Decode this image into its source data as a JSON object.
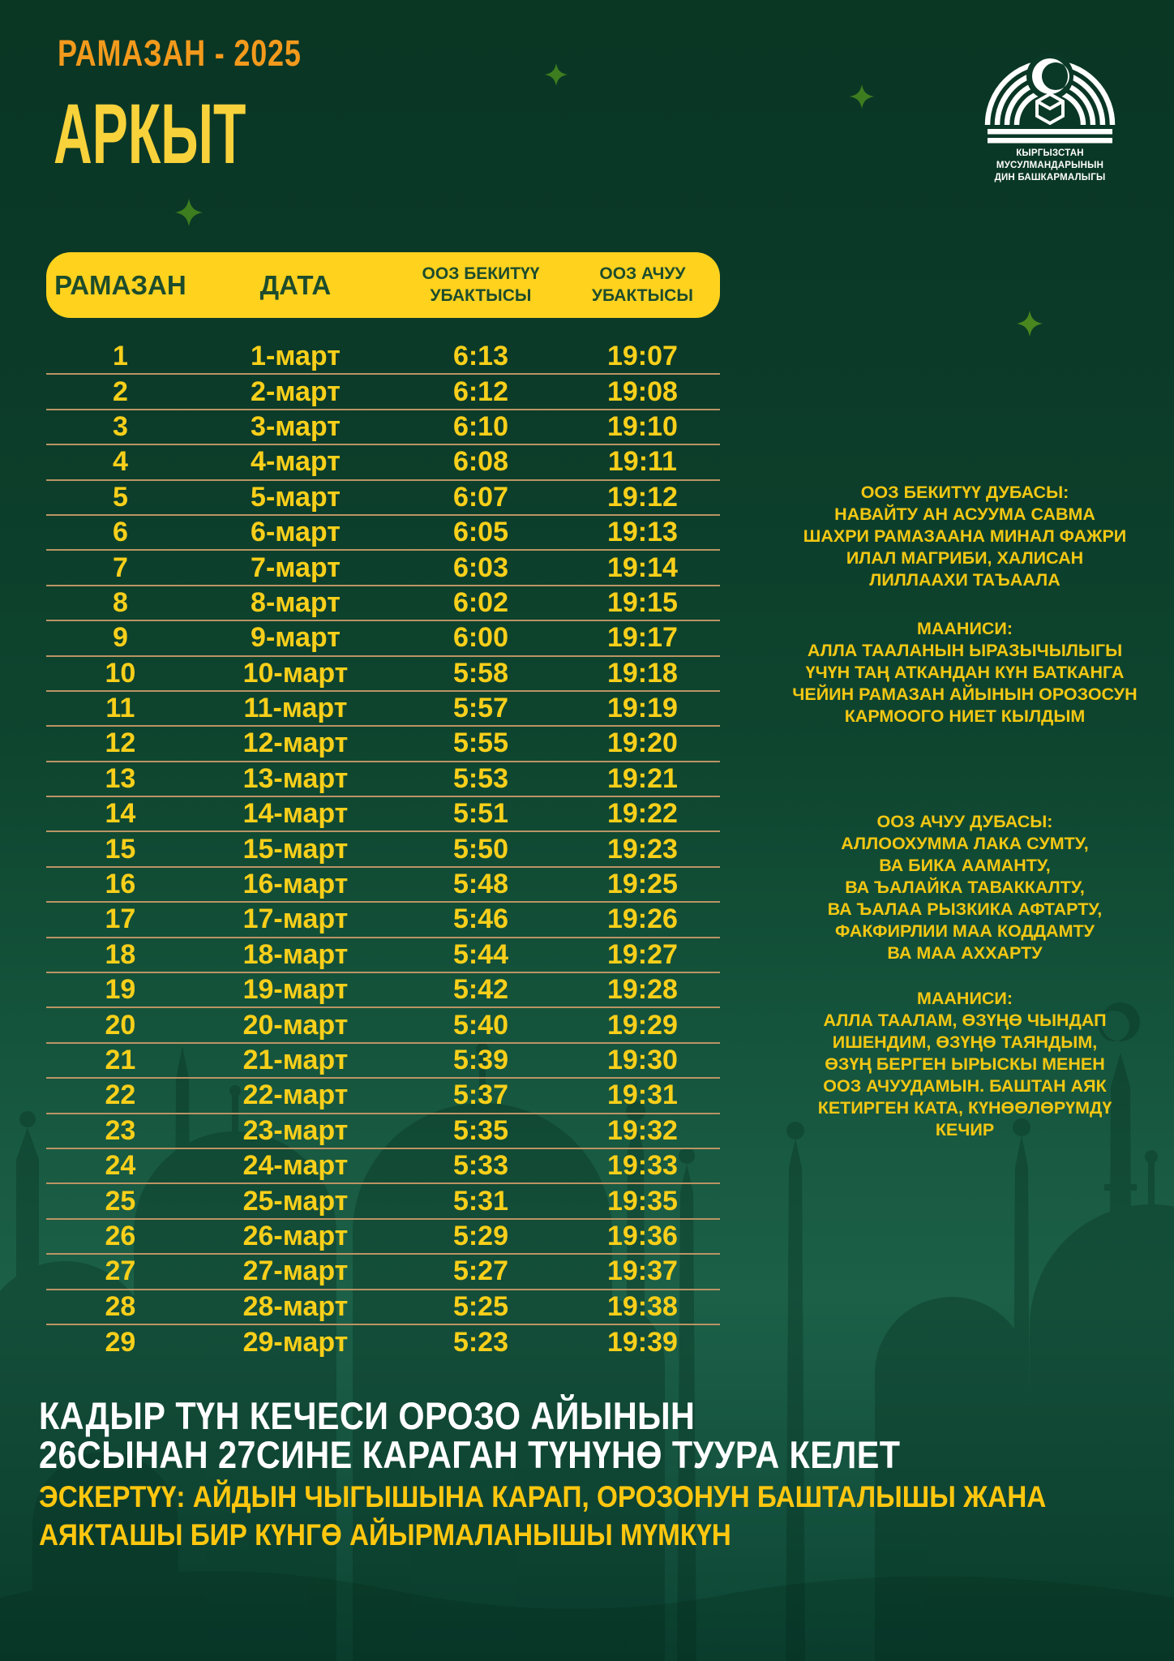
{
  "poster": {
    "year_title": "РАМАЗАН - 2025",
    "location": "АРКЫТ",
    "logo": {
      "line1": "КЫРГЫЗСТАН МУСУЛМАНДАРЫНЫН",
      "line2": "ДИН БАШКАРМАЛЫГЫ"
    }
  },
  "table": {
    "headers": [
      "РАМАЗАН",
      "ДАТА",
      "ООЗ БЕКИТҮҮ\nУБАКТЫСЫ",
      "ООЗ АЧУУ\nУБАКТЫСЫ"
    ],
    "rows": [
      [
        "1",
        "1-март",
        "6:13",
        "19:07"
      ],
      [
        "2",
        "2-март",
        "6:12",
        "19:08"
      ],
      [
        "3",
        "3-март",
        "6:10",
        "19:10"
      ],
      [
        "4",
        "4-март",
        "6:08",
        "19:11"
      ],
      [
        "5",
        "5-март",
        "6:07",
        "19:12"
      ],
      [
        "6",
        "6-март",
        "6:05",
        "19:13"
      ],
      [
        "7",
        "7-март",
        "6:03",
        "19:14"
      ],
      [
        "8",
        "8-март",
        "6:02",
        "19:15"
      ],
      [
        "9",
        "9-март",
        "6:00",
        "19:17"
      ],
      [
        "10",
        "10-март",
        "5:58",
        "19:18"
      ],
      [
        "11",
        "11-март",
        "5:57",
        "19:19"
      ],
      [
        "12",
        "12-март",
        "5:55",
        "19:20"
      ],
      [
        "13",
        "13-март",
        "5:53",
        "19:21"
      ],
      [
        "14",
        "14-март",
        "5:51",
        "19:22"
      ],
      [
        "15",
        "15-март",
        "5:50",
        "19:23"
      ],
      [
        "16",
        "16-март",
        "5:48",
        "19:25"
      ],
      [
        "17",
        "17-март",
        "5:46",
        "19:26"
      ],
      [
        "18",
        "18-март",
        "5:44",
        "19:27"
      ],
      [
        "19",
        "19-март",
        "5:42",
        "19:28"
      ],
      [
        "20",
        "20-март",
        "5:40",
        "19:29"
      ],
      [
        "21",
        "21-март",
        "5:39",
        "19:30"
      ],
      [
        "22",
        "22-март",
        "5:37",
        "19:31"
      ],
      [
        "23",
        "23-март",
        "5:35",
        "19:32"
      ],
      [
        "24",
        "24-март",
        "5:33",
        "19:33"
      ],
      [
        "25",
        "25-март",
        "5:31",
        "19:35"
      ],
      [
        "26",
        "26-март",
        "5:29",
        "19:36"
      ],
      [
        "27",
        "27-март",
        "5:27",
        "19:37"
      ],
      [
        "28",
        "28-март",
        "5:25",
        "19:38"
      ],
      [
        "29",
        "29-март",
        "5:23",
        "19:39"
      ]
    ]
  },
  "dua1": {
    "title": "ООЗ БЕКИТҮҮ ДУБАСЫ:",
    "lines": [
      "НАВАЙТУ АН АСУУМА САВМА",
      "ШАХРИ РАМАЗААНА МИНАЛ ФАЖРИ",
      "ИЛАЛ МАГРИБИ, ХАЛИСАН",
      "ЛИЛЛААХИ ТАЪААЛА"
    ],
    "meaning_title": "МААНИСИ:",
    "meaning_lines": [
      "АЛЛА ТААЛАНЫН ЫРАЗЫЧЫЛЫГЫ",
      "ҮЧҮН ТАҢ АТКАНДАН КҮН БАТКАНГА",
      "ЧЕЙИН РАМАЗАН АЙЫНЫН ОРОЗОСУН",
      "КАРМООГО НИЕТ КЫЛДЫМ"
    ]
  },
  "dua2": {
    "title": "ООЗ АЧУУ ДУБАСЫ:",
    "lines": [
      "АЛЛООХУММА ЛАКА СУМТУ,",
      "ВА БИКА ААМАНТУ,",
      "ВА ЪАЛАЙКА ТАВАККАЛТУ,",
      "ВА ЪАЛАА РЫЗКИКА АФТАРТУ,",
      "ФАКФИРЛИИ МАА КОДДАМТУ",
      "ВА МАА АХХАРТУ"
    ],
    "meaning_title": "МААНИСИ:",
    "meaning_lines": [
      "АЛЛА ТААЛАМ, ӨЗҮҢӨ ЧЫНДАП",
      "ИШЕНДИМ, ӨЗҮҢӨ ТАЯНДЫМ,",
      "ӨЗҮҢ БЕРГЕН ЫРЫСКЫ МЕНЕН",
      "ООЗ АЧУУДАМЫН. БАШТАН АЯК",
      "КЕТИРГЕН КАТА, КҮНӨӨЛӨРҮМДҮ",
      "КЕЧИР"
    ]
  },
  "footer": {
    "white_lines": [
      "КАДЫР ТҮН КЕЧЕСИ ОРОЗО АЙЫНЫН",
      "26СЫНАН 27СИНЕ КАРАГАН ТҮНҮНӨ ТУУРА КЕЛЕТ"
    ],
    "yellow_lines": [
      "ЭСКЕРТҮҮ: АЙДЫН ЧЫГЫШЫНА КАРАП, ОРОЗОНУН БАШТАЛЫШЫ ЖАНА",
      "АЯКТАШЫ БИР КҮНГӨ АЙЫРМАЛАНЫШЫ МҮМКҮН"
    ]
  },
  "icons": {
    "sparkle": "four-point-star",
    "logo": "muftiyat-mosque-emblem",
    "crescent": "crescent-moon",
    "silhouette": "mosque-skyline"
  },
  "colors": {
    "background_green_top": "#0a3624",
    "background_green_light": "#1c6048",
    "header_yellow": "#ffd21e",
    "header_text_green": "#1d4c2c",
    "table_text_yellow": "#f8cf1a",
    "separator_tan": "#bb9464",
    "title_orange": "#f39a1c",
    "location_yellow": "#f8d23b",
    "dua_yellow": "#f3c713",
    "footer_yellow": "#ffc70f",
    "white": "#ffffff",
    "sparkle_green": "#3e7d1f"
  }
}
